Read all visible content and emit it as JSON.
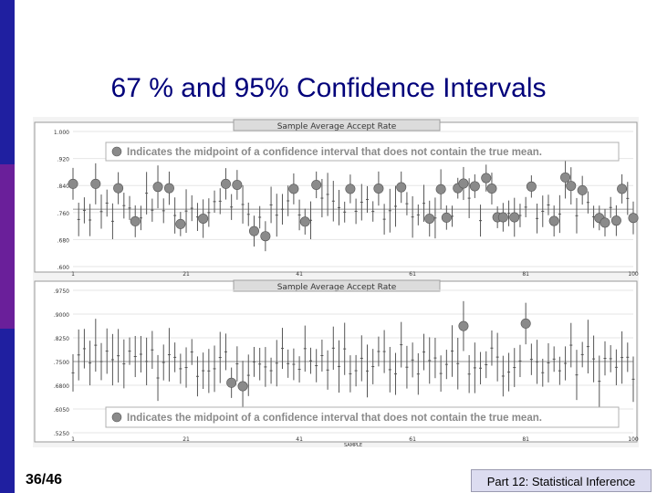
{
  "slide": {
    "title": "67 % and 95% Confidence Intervals",
    "number": "36/46",
    "footer": "Part 12: Statistical Inference"
  },
  "colors": {
    "sidebar_top": "#1f1fa0",
    "sidebar_mid": "#6a1f9a",
    "sidebar_bottom": "#1f1fa0",
    "title": "#00007a",
    "marker": "#8a8a8a",
    "footer_bg": "#dcdcf0"
  },
  "chart_data": [
    {
      "type": "scatter",
      "title": "Sample Average Accept Rate",
      "legend": "Indicates the midpoint of a confidence interval that does not contain the true mean.",
      "xlabel": "",
      "ylabel": "",
      "x_ticks": [
        "1",
        "21",
        "41",
        "61",
        "81",
        "100"
      ],
      "y_ticks": [
        ".600",
        ".680",
        ".760",
        ".840",
        ".920",
        "1.000"
      ],
      "ylim": [
        0.6,
        1.0
      ],
      "xlim": [
        1,
        100
      ],
      "true_mean": 0.77,
      "highlighted_midpoints": [
        {
          "x": 1,
          "y": 0.845
        },
        {
          "x": 5,
          "y": 0.845
        },
        {
          "x": 9,
          "y": 0.832
        },
        {
          "x": 12,
          "y": 0.734
        },
        {
          "x": 16,
          "y": 0.836
        },
        {
          "x": 18,
          "y": 0.832
        },
        {
          "x": 20,
          "y": 0.726
        },
        {
          "x": 24,
          "y": 0.742
        },
        {
          "x": 28,
          "y": 0.845
        },
        {
          "x": 30,
          "y": 0.842
        },
        {
          "x": 33,
          "y": 0.705
        },
        {
          "x": 35,
          "y": 0.69
        },
        {
          "x": 40,
          "y": 0.83
        },
        {
          "x": 42,
          "y": 0.733
        },
        {
          "x": 44,
          "y": 0.842
        },
        {
          "x": 50,
          "y": 0.83
        },
        {
          "x": 55,
          "y": 0.831
        },
        {
          "x": 59,
          "y": 0.835
        },
        {
          "x": 64,
          "y": 0.742
        },
        {
          "x": 66,
          "y": 0.829
        },
        {
          "x": 67,
          "y": 0.745
        },
        {
          "x": 69,
          "y": 0.832
        },
        {
          "x": 70,
          "y": 0.846
        },
        {
          "x": 72,
          "y": 0.838
        },
        {
          "x": 74,
          "y": 0.862
        },
        {
          "x": 75,
          "y": 0.831
        },
        {
          "x": 76,
          "y": 0.746
        },
        {
          "x": 77,
          "y": 0.746
        },
        {
          "x": 79,
          "y": 0.746
        },
        {
          "x": 82,
          "y": 0.837
        },
        {
          "x": 86,
          "y": 0.735
        },
        {
          "x": 88,
          "y": 0.864
        },
        {
          "x": 89,
          "y": 0.839
        },
        {
          "x": 91,
          "y": 0.826
        },
        {
          "x": 94,
          "y": 0.744
        },
        {
          "x": 95,
          "y": 0.73
        },
        {
          "x": 97,
          "y": 0.736
        },
        {
          "x": 98,
          "y": 0.83
        },
        {
          "x": 100,
          "y": 0.744
        }
      ]
    },
    {
      "type": "scatter",
      "title": "Sample Average Accept Rate",
      "legend": "Indicates the midpoint of a confidence interval that does not contain the true mean.",
      "xlabel": "SAMPLE",
      "ylabel": "",
      "x_ticks": [
        "1",
        "21",
        "41",
        "61",
        "81",
        "100"
      ],
      "y_ticks": [
        ".5250",
        ".6050",
        ".6800",
        ".7500",
        ".8250",
        ".9000",
        ".9750"
      ],
      "ylim": [
        0.525,
        0.975
      ],
      "xlim": [
        1,
        100
      ],
      "true_mean": 0.75,
      "highlighted_midpoints": [
        {
          "x": 29,
          "y": 0.683
        },
        {
          "x": 31,
          "y": 0.672
        },
        {
          "x": 70,
          "y": 0.862
        },
        {
          "x": 81,
          "y": 0.87
        }
      ]
    }
  ]
}
